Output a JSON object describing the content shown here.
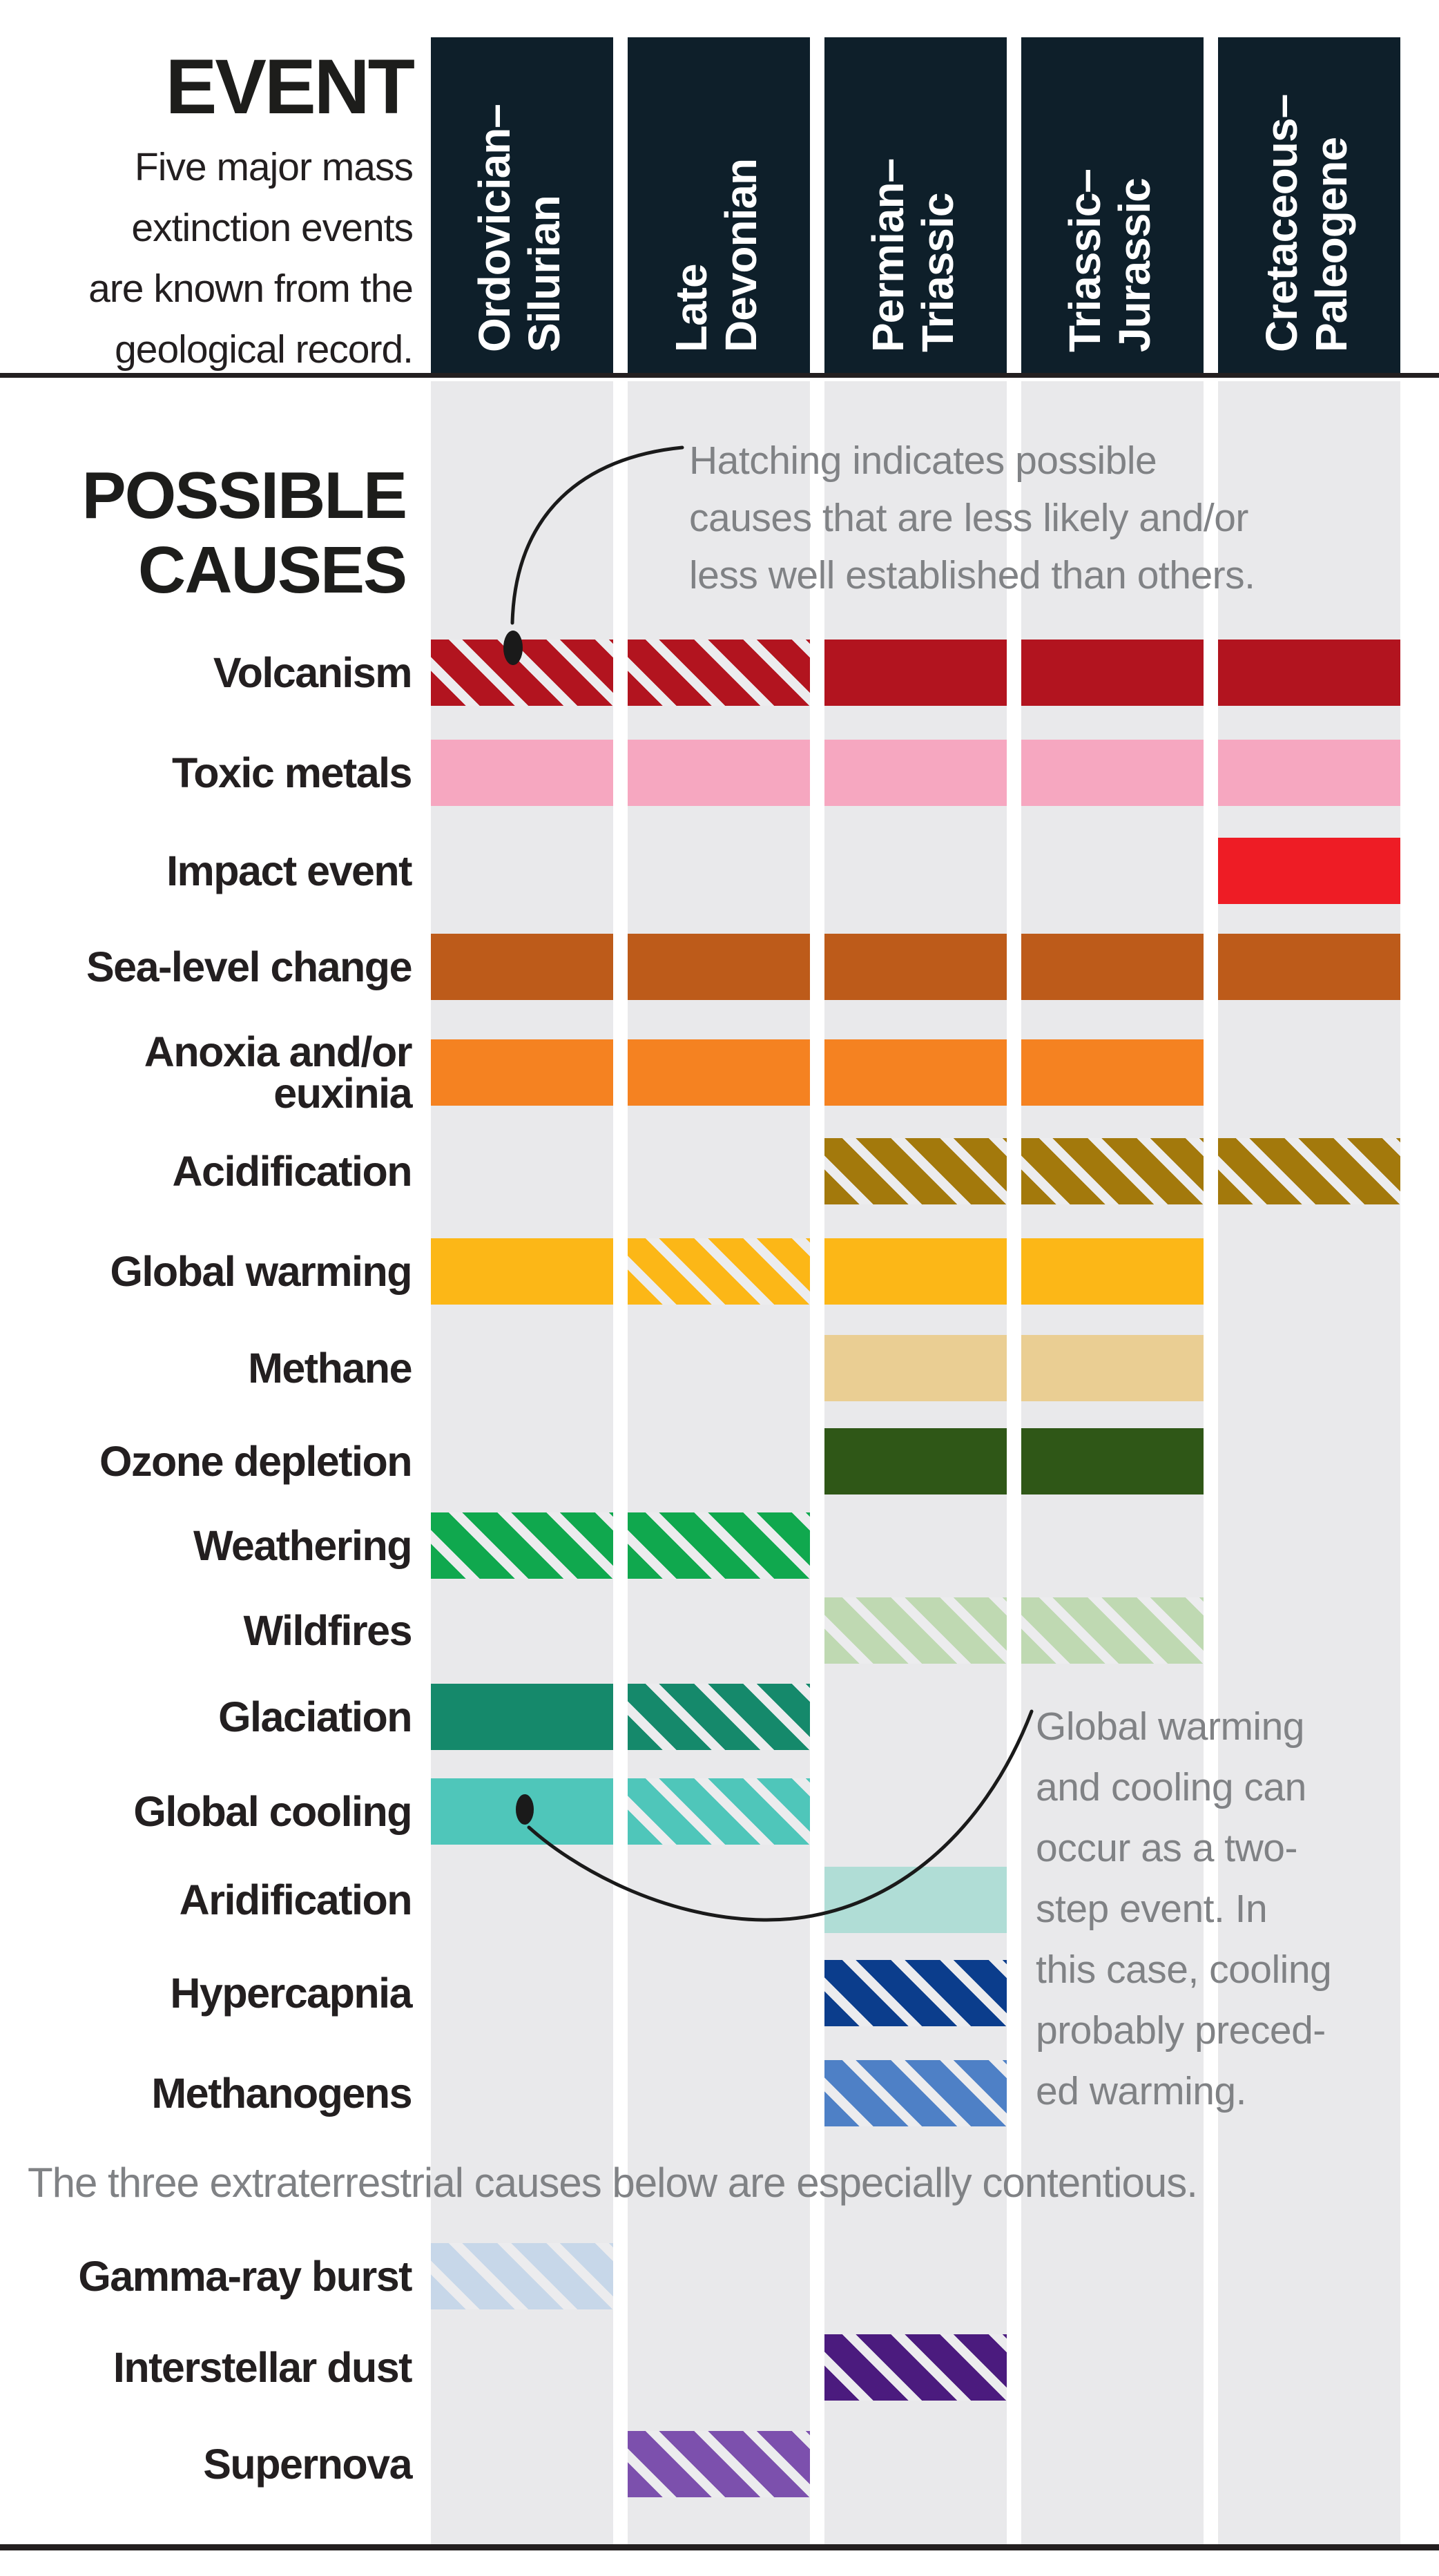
{
  "header": {
    "title": "EVENT",
    "description_lines": [
      "Five major mass",
      "extinction events",
      "are known from the",
      "geological record."
    ],
    "columns": [
      {
        "line1": "Ordovician–",
        "line2": "Silurian"
      },
      {
        "line1": "Late",
        "line2": "Devonian"
      },
      {
        "line1": "Permian–",
        "line2": "Triassic"
      },
      {
        "line1": "Triassic–",
        "line2": "Jurassic"
      },
      {
        "line1": "Cretaceous–",
        "line2": "Paleogene"
      }
    ]
  },
  "causes_header": {
    "line1": "POSSIBLE",
    "line2": "CAUSES"
  },
  "annotations": {
    "hatching_note_lines": [
      "Hatching indicates possible",
      "causes that are less likely and/or",
      "less well established than others."
    ],
    "two_step_note_lines": [
      "Global warming",
      "and cooling can",
      "occur as a two-",
      "step event. In",
      "this case, cooling",
      "probably preced-",
      "ed warming."
    ],
    "extraterrestrial_note": "The three extraterrestrial causes below are especially contentious."
  },
  "colors": {
    "header_box": "#0e1f2a",
    "column_stripe": "#e9e9eb",
    "hatch_light": "#ececee",
    "rule": "#231f20",
    "label_text": "#231f20",
    "annotation_text": "#808285",
    "leader_line": "#1a1a1a"
  },
  "chart_data": {
    "type": "heatmap",
    "title": "Possible causes of the five major mass extinction events",
    "legend_note": "Hatching indicates possible causes that are less likely and/or less well established than others.",
    "columns": [
      "Ordovician–Silurian",
      "Late Devonian",
      "Permian–Triassic",
      "Triassic–Jurassic",
      "Cretaceous–Paleogene"
    ],
    "cell_states": [
      "solid",
      "hatched",
      null
    ],
    "rows": [
      {
        "label": "Volcanism",
        "lines": [
          "Volcanism"
        ],
        "color": "#b2141f",
        "group": "main",
        "cells": [
          "hatched",
          "hatched",
          "solid",
          "solid",
          "solid"
        ]
      },
      {
        "label": "Toxic metals",
        "lines": [
          "Toxic metals"
        ],
        "color": "#f6a7c0",
        "group": "main",
        "cells": [
          "solid",
          "solid",
          "solid",
          "solid",
          "solid"
        ]
      },
      {
        "label": "Impact event",
        "lines": [
          "Impact event"
        ],
        "color": "#ee1c25",
        "group": "main",
        "cells": [
          null,
          null,
          null,
          null,
          "solid"
        ]
      },
      {
        "label": "Sea-level change",
        "lines": [
          "Sea-level change"
        ],
        "color": "#bd5b1a",
        "group": "main",
        "cells": [
          "solid",
          "solid",
          "solid",
          "solid",
          "solid"
        ]
      },
      {
        "label": "Anoxia and/or euxinia",
        "lines": [
          "Anoxia and/or",
          "euxinia"
        ],
        "color": "#f58221",
        "group": "main",
        "cells": [
          "solid",
          "solid",
          "solid",
          "solid",
          null
        ]
      },
      {
        "label": "Acidification",
        "lines": [
          "Acidification"
        ],
        "color": "#a3790c",
        "group": "main",
        "cells": [
          null,
          null,
          "hatched",
          "hatched",
          "hatched"
        ]
      },
      {
        "label": "Global warming",
        "lines": [
          "Global warming"
        ],
        "color": "#fcb717",
        "group": "main",
        "cells": [
          "solid",
          "hatched",
          "solid",
          "solid",
          null
        ]
      },
      {
        "label": "Methane",
        "lines": [
          "Methane"
        ],
        "color": "#eace93",
        "group": "main",
        "cells": [
          null,
          null,
          "solid",
          "solid",
          null
        ]
      },
      {
        "label": "Ozone depletion",
        "lines": [
          "Ozone depletion"
        ],
        "color": "#2f5717",
        "group": "main",
        "cells": [
          null,
          null,
          "solid",
          "solid",
          null
        ]
      },
      {
        "label": "Weathering",
        "lines": [
          "Weathering"
        ],
        "color": "#10a84e",
        "group": "main",
        "cells": [
          "hatched",
          "hatched",
          null,
          null,
          null
        ]
      },
      {
        "label": "Wildfires",
        "lines": [
          "Wildfires"
        ],
        "color": "#bfd9b2",
        "group": "main",
        "cells": [
          null,
          null,
          "hatched",
          "hatched",
          null
        ]
      },
      {
        "label": "Glaciation",
        "lines": [
          "Glaciation"
        ],
        "color": "#15896b",
        "group": "main",
        "cells": [
          "solid",
          "hatched",
          null,
          null,
          null
        ]
      },
      {
        "label": "Global cooling",
        "lines": [
          "Global cooling"
        ],
        "color": "#4fc6ba",
        "group": "main",
        "cells": [
          "solid",
          "hatched",
          null,
          null,
          null
        ]
      },
      {
        "label": "Aridification",
        "lines": [
          "Aridification"
        ],
        "color": "#b0ddd6",
        "group": "main",
        "cells": [
          null,
          null,
          "solid",
          null,
          null
        ]
      },
      {
        "label": "Hypercapnia",
        "lines": [
          "Hypercapnia"
        ],
        "color": "#0b3d8c",
        "group": "main",
        "cells": [
          null,
          null,
          "hatched",
          null,
          null
        ]
      },
      {
        "label": "Methanogens",
        "lines": [
          "Methanogens"
        ],
        "color": "#4e80c6",
        "group": "main",
        "cells": [
          null,
          null,
          "hatched",
          null,
          null
        ]
      },
      {
        "label": "Gamma-ray burst",
        "lines": [
          "Gamma-ray burst"
        ],
        "color": "#c7d7e9",
        "group": "extraterrestrial",
        "cells": [
          "hatched",
          null,
          null,
          null,
          null
        ]
      },
      {
        "label": "Interstellar dust",
        "lines": [
          "Interstellar dust"
        ],
        "color": "#4b1b7e",
        "group": "extraterrestrial",
        "cells": [
          null,
          null,
          "hatched",
          null,
          null
        ]
      },
      {
        "label": "Supernova",
        "lines": [
          "Supernova"
        ],
        "color": "#7c50ad",
        "group": "extraterrestrial",
        "cells": [
          null,
          "hatched",
          null,
          null,
          null
        ]
      }
    ]
  }
}
